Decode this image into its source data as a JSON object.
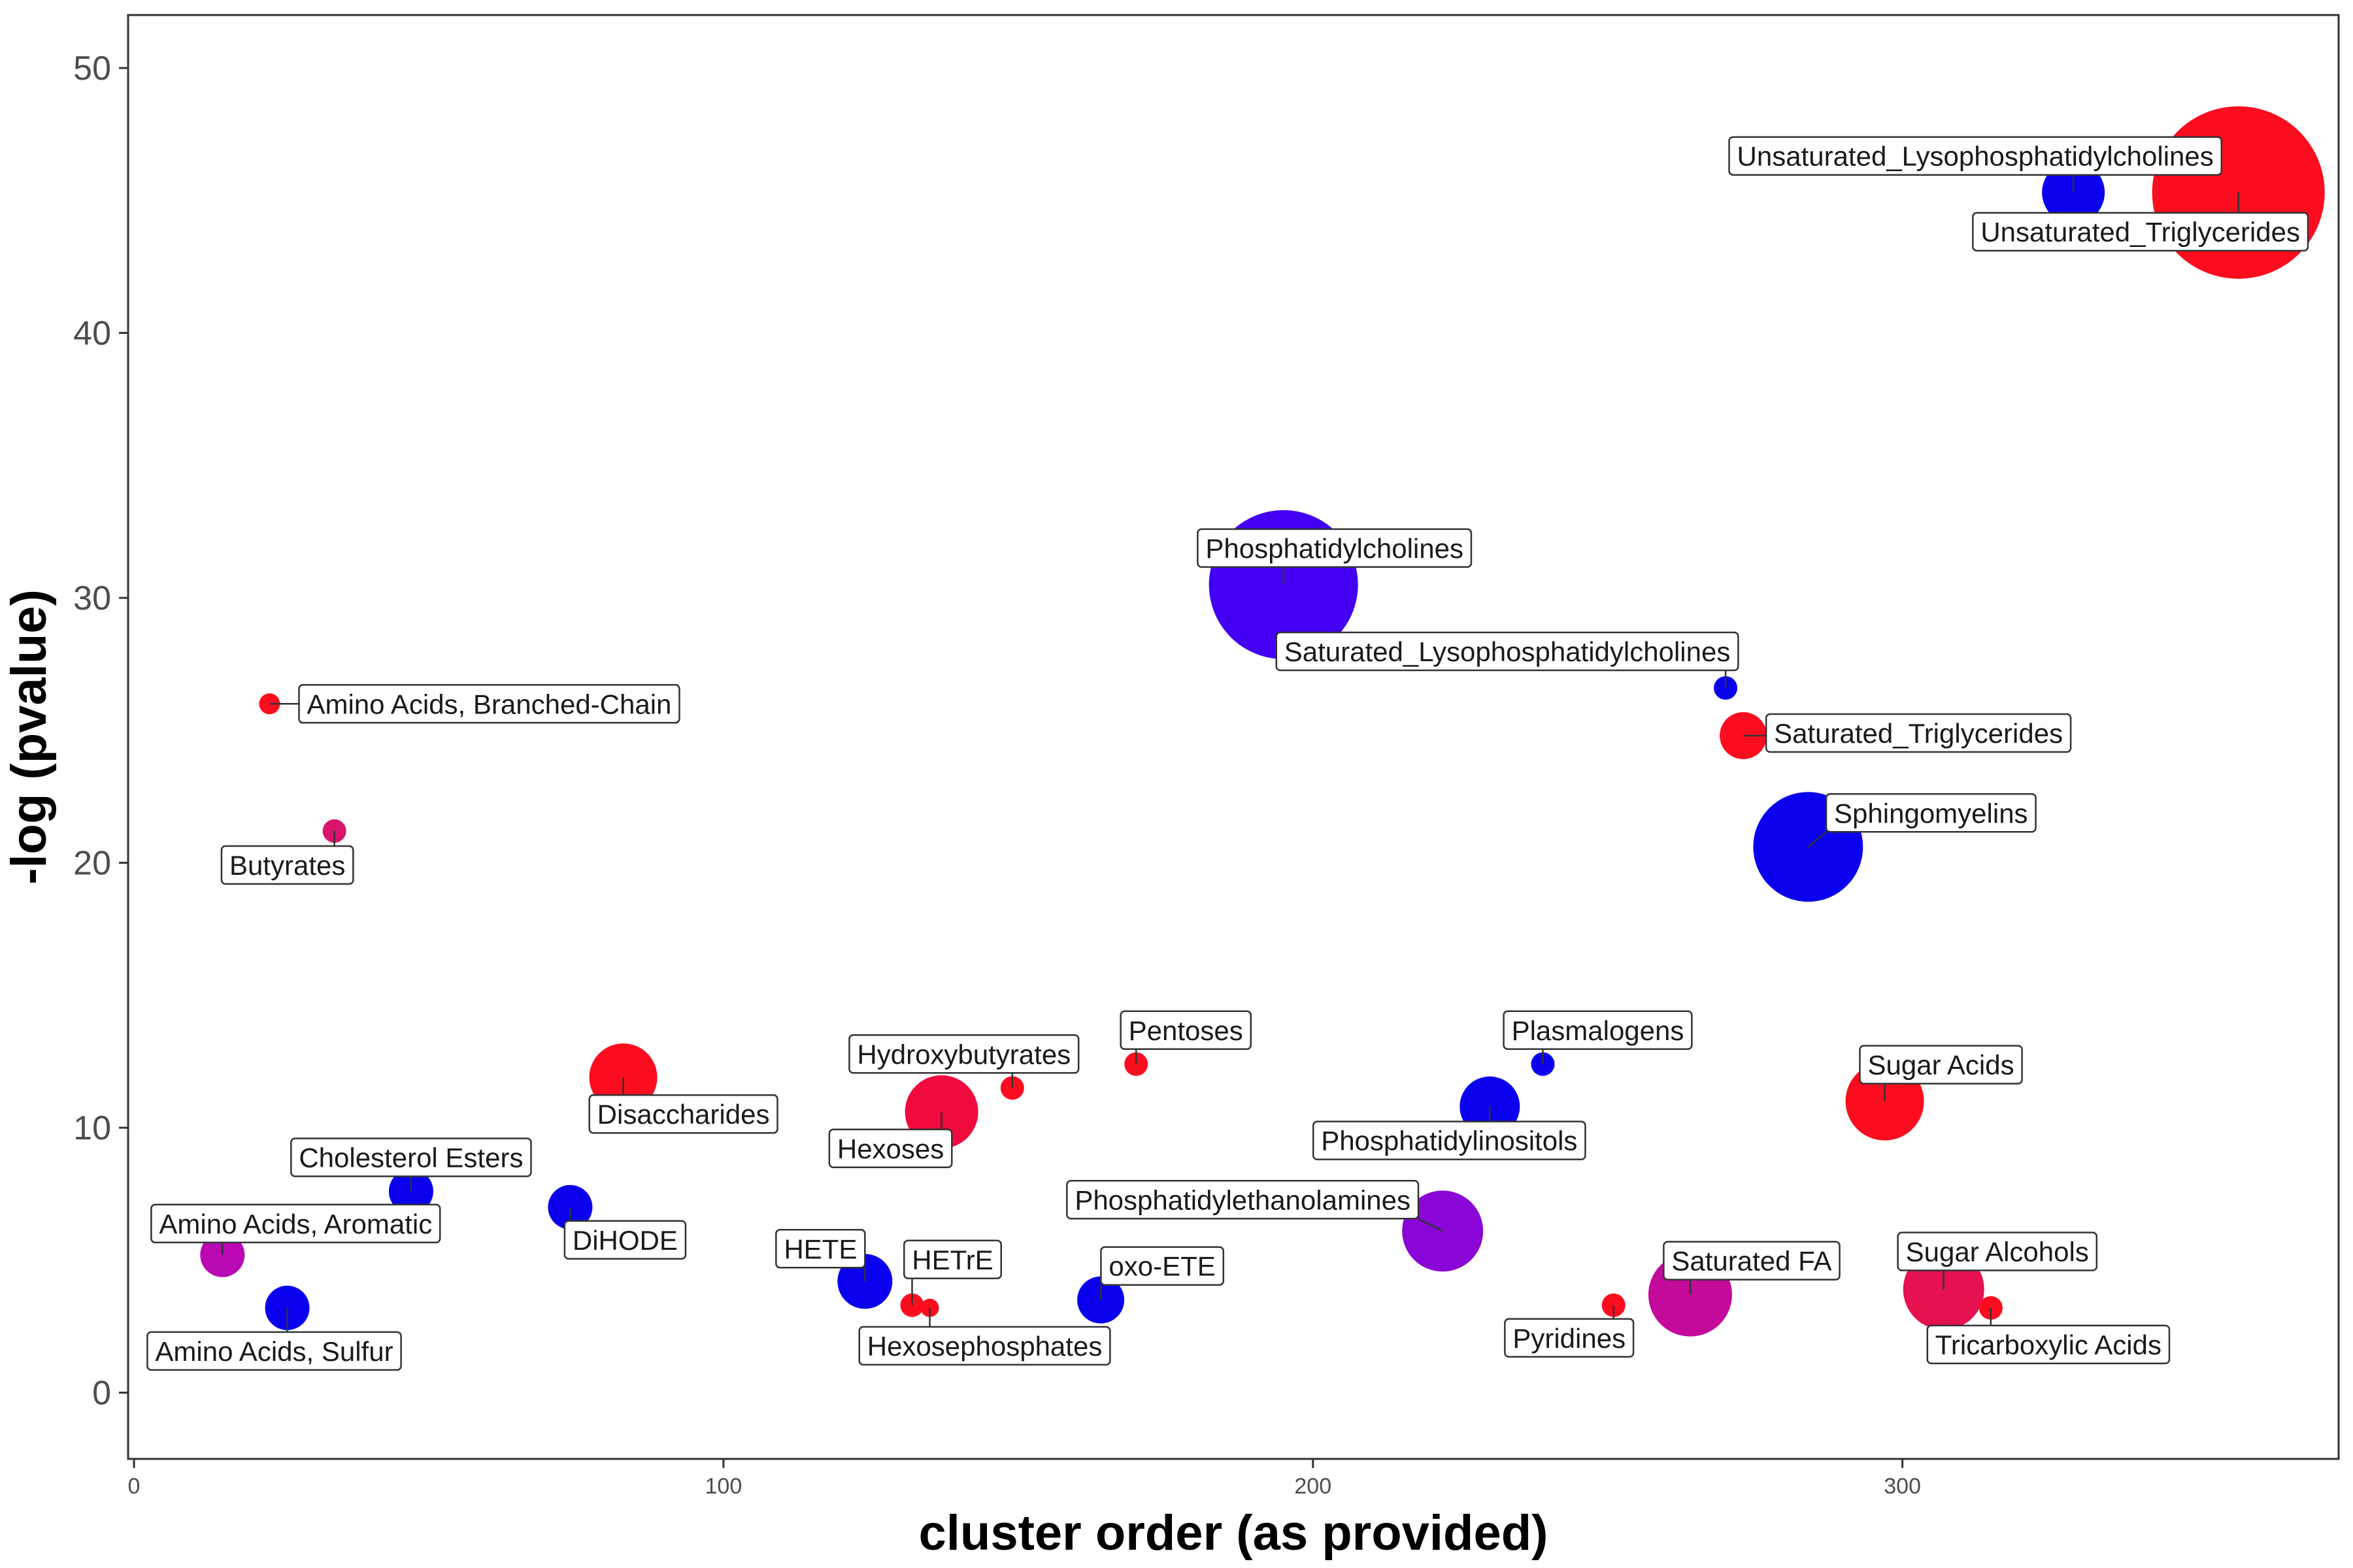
{
  "chart_data": {
    "type": "scatter",
    "title": "",
    "xlabel": "cluster order (as provided)",
    "ylabel": "-log (pvalue)",
    "xlim": [
      -1,
      374
    ],
    "ylim": [
      -2.5,
      52
    ],
    "xticks": [
      0,
      100,
      200,
      300
    ],
    "yticks": [
      0,
      10,
      20,
      30,
      40,
      50
    ],
    "grid": false,
    "legend": "none",
    "points": [
      {
        "label": "Amino Acids, Branched-Chain",
        "x": 23,
        "y": 26.0,
        "size": 16,
        "color": "#fb0d1f"
      },
      {
        "label": "Butyrates",
        "x": 34,
        "y": 21.2,
        "size": 18,
        "color": "#d9146b"
      },
      {
        "label": "Amino Acids, Aromatic",
        "x": 15,
        "y": 5.2,
        "size": 34,
        "color": "#bb08b5"
      },
      {
        "label": "Amino Acids, Sulfur",
        "x": 26,
        "y": 3.2,
        "size": 34,
        "color": "#0a00ee"
      },
      {
        "label": "Cholesterol Esters",
        "x": 47,
        "y": 7.6,
        "size": 34,
        "color": "#0a00ee"
      },
      {
        "label": "DiHODE",
        "x": 74,
        "y": 7.0,
        "size": 34,
        "color": "#0a00ee"
      },
      {
        "label": "Disaccharides",
        "x": 83,
        "y": 11.9,
        "size": 52,
        "color": "#fb0d1f"
      },
      {
        "label": "HETE",
        "x": 124,
        "y": 4.2,
        "size": 42,
        "color": "#0a00ee"
      },
      {
        "label": "HETrE",
        "x": 132,
        "y": 3.3,
        "size": 18,
        "color": "#fb0d1f"
      },
      {
        "label": "Hexosephosphates",
        "x": 135,
        "y": 3.2,
        "size": 14,
        "color": "#fb0d1f"
      },
      {
        "label": "Hexoses",
        "x": 137,
        "y": 10.6,
        "size": 56,
        "color": "#f00a3d"
      },
      {
        "label": "Hydroxybutyrates",
        "x": 149,
        "y": 11.5,
        "size": 18,
        "color": "#fb0d1f"
      },
      {
        "label": "Pentoses",
        "x": 170,
        "y": 12.4,
        "size": 18,
        "color": "#fb0d1f"
      },
      {
        "label": "oxo-ETE",
        "x": 164,
        "y": 3.5,
        "size": 36,
        "color": "#0a00ee"
      },
      {
        "label": "Phosphatidylcholines",
        "x": 195,
        "y": 30.5,
        "size": 114,
        "color": "#4300f2"
      },
      {
        "label": "Phosphatidylethanolamines",
        "x": 222,
        "y": 6.1,
        "size": 62,
        "color": "#8a06d6"
      },
      {
        "label": "Phosphatidylinositols",
        "x": 230,
        "y": 10.8,
        "size": 46,
        "color": "#0a00ee"
      },
      {
        "label": "Plasmalogens",
        "x": 239,
        "y": 12.4,
        "size": 18,
        "color": "#0a00ee"
      },
      {
        "label": "Pyridines",
        "x": 251,
        "y": 3.3,
        "size": 18,
        "color": "#fb0d1f"
      },
      {
        "label": "Saturated FA",
        "x": 264,
        "y": 3.7,
        "size": 64,
        "color": "#c30a9b"
      },
      {
        "label": "Saturated_Lysophosphatidylcholines",
        "x": 270,
        "y": 26.6,
        "size": 18,
        "color": "#0a00ee"
      },
      {
        "label": "Saturated_Triglycerides",
        "x": 273,
        "y": 24.8,
        "size": 36,
        "color": "#fb0d1f"
      },
      {
        "label": "Sphingomyelins",
        "x": 284,
        "y": 20.6,
        "size": 84,
        "color": "#0a00ee"
      },
      {
        "label": "Sugar Acids",
        "x": 297,
        "y": 11.0,
        "size": 60,
        "color": "#fb0d1f"
      },
      {
        "label": "Sugar Alcohols",
        "x": 307,
        "y": 3.9,
        "size": 62,
        "color": "#e5124f"
      },
      {
        "label": "Tricarboxylic Acids",
        "x": 315,
        "y": 3.2,
        "size": 18,
        "color": "#fb0d1f"
      },
      {
        "label": "Unsaturated_Lysophosphatidylcholines",
        "x": 329,
        "y": 45.3,
        "size": 48,
        "color": "#0a00ee"
      },
      {
        "label": "Unsaturated_Triglycerides",
        "x": 357,
        "y": 45.3,
        "size": 132,
        "color": "#fb0d1f"
      }
    ]
  }
}
